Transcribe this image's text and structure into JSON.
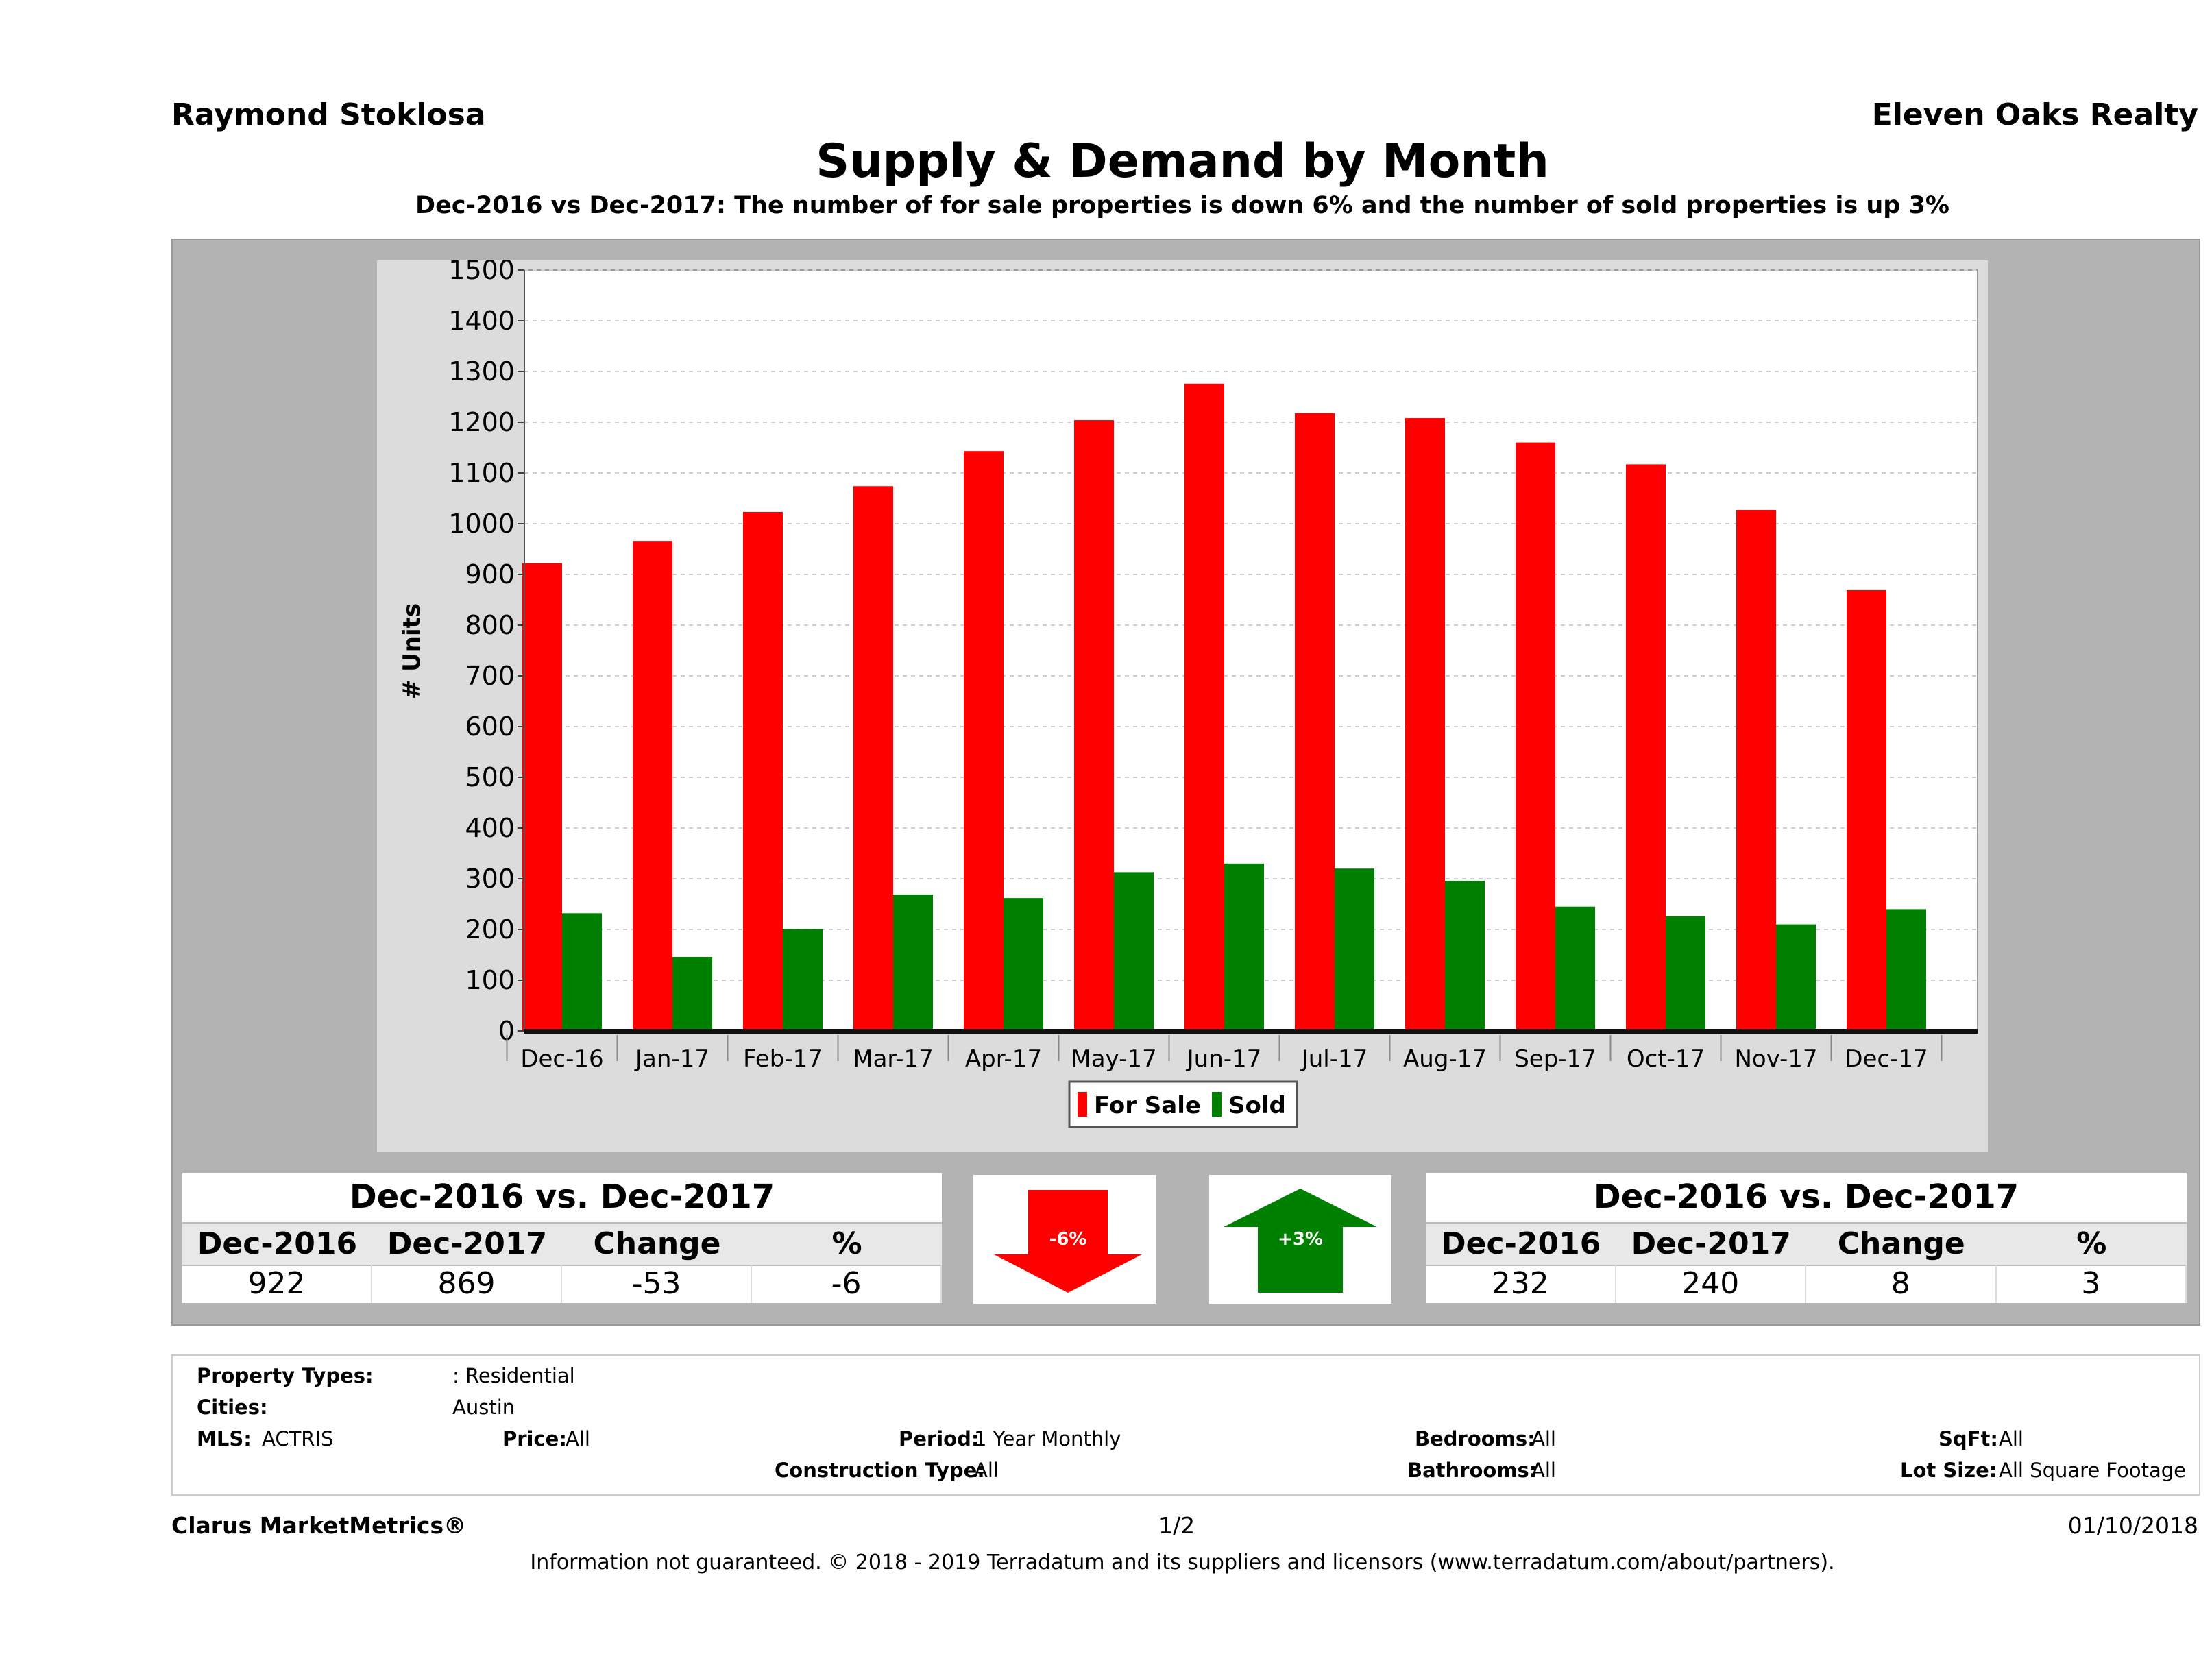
{
  "header": {
    "agent": "Raymond Stoklosa",
    "brokerage": "Eleven Oaks Realty",
    "title": "Supply & Demand by Month",
    "subtitle": "Dec-2016 vs Dec-2017: The number of for sale properties is down 6% and the number of sold properties is up 3%"
  },
  "chart_data": {
    "type": "bar",
    "ylabel": "# Units",
    "xlabel": "",
    "ylim": [
      0,
      1500
    ],
    "yticks": [
      0,
      100,
      200,
      300,
      400,
      500,
      600,
      700,
      800,
      900,
      1000,
      1100,
      1200,
      1300,
      1400,
      1500
    ],
    "grid": true,
    "legend": "bottom-center",
    "categories": [
      "Dec-16",
      "Jan-17",
      "Feb-17",
      "Mar-17",
      "Apr-17",
      "May-17",
      "Jun-17",
      "Jul-17",
      "Aug-17",
      "Sep-17",
      "Oct-17",
      "Nov-17",
      "Dec-17"
    ],
    "series": [
      {
        "name": "For Sale",
        "color": "#ff0000",
        "values": [
          922,
          966,
          1023,
          1074,
          1143,
          1204,
          1276,
          1218,
          1208,
          1160,
          1117,
          1027,
          869
        ]
      },
      {
        "name": "Sold",
        "color": "#008000",
        "values": [
          232,
          146,
          201,
          269,
          262,
          313,
          330,
          320,
          296,
          245,
          226,
          210,
          240
        ]
      }
    ]
  },
  "tables": {
    "for_sale": {
      "title": "Dec-2016 vs. Dec-2017",
      "headers": [
        "Dec-2016",
        "Dec-2017",
        "Change",
        "%"
      ],
      "values": [
        "922",
        "869",
        "-53",
        "-6"
      ]
    },
    "sold": {
      "title": "Dec-2016 vs. Dec-2017",
      "headers": [
        "Dec-2016",
        "Dec-2017",
        "Change",
        "%"
      ],
      "values": [
        "232",
        "240",
        "8",
        "3"
      ]
    }
  },
  "arrows": {
    "down": {
      "label": "-6%",
      "color": "#ff0000",
      "icon": "arrow-down-icon"
    },
    "up": {
      "label": "+3%",
      "color": "#008000",
      "icon": "arrow-up-icon"
    }
  },
  "filters": {
    "property_types_label": "Property Types:",
    "property_types_value": ": Residential",
    "cities_label": "Cities:",
    "cities_value": "Austin",
    "mls_label": "MLS:",
    "mls_value": "ACTRIS",
    "price_label": "Price:",
    "price_value": "All",
    "period_label": "Period:",
    "period_value": "1 Year Monthly",
    "construction_label": "Construction Type:",
    "construction_value": "All",
    "bedrooms_label": "Bedrooms:",
    "bedrooms_value": "All",
    "bathrooms_label": "Bathrooms:",
    "bathrooms_value": "All",
    "sqft_label": "SqFt:",
    "sqft_value": "All",
    "lotsize_label": "Lot Size:",
    "lotsize_value": "All Square Footage"
  },
  "footer": {
    "product": "Clarus MarketMetrics®",
    "page": "1/2",
    "date": "01/10/2018",
    "disclaimer": "Information not guaranteed. © 2018 - 2019 Terradatum and its suppliers and licensors (www.terradatum.com/about/partners)."
  }
}
